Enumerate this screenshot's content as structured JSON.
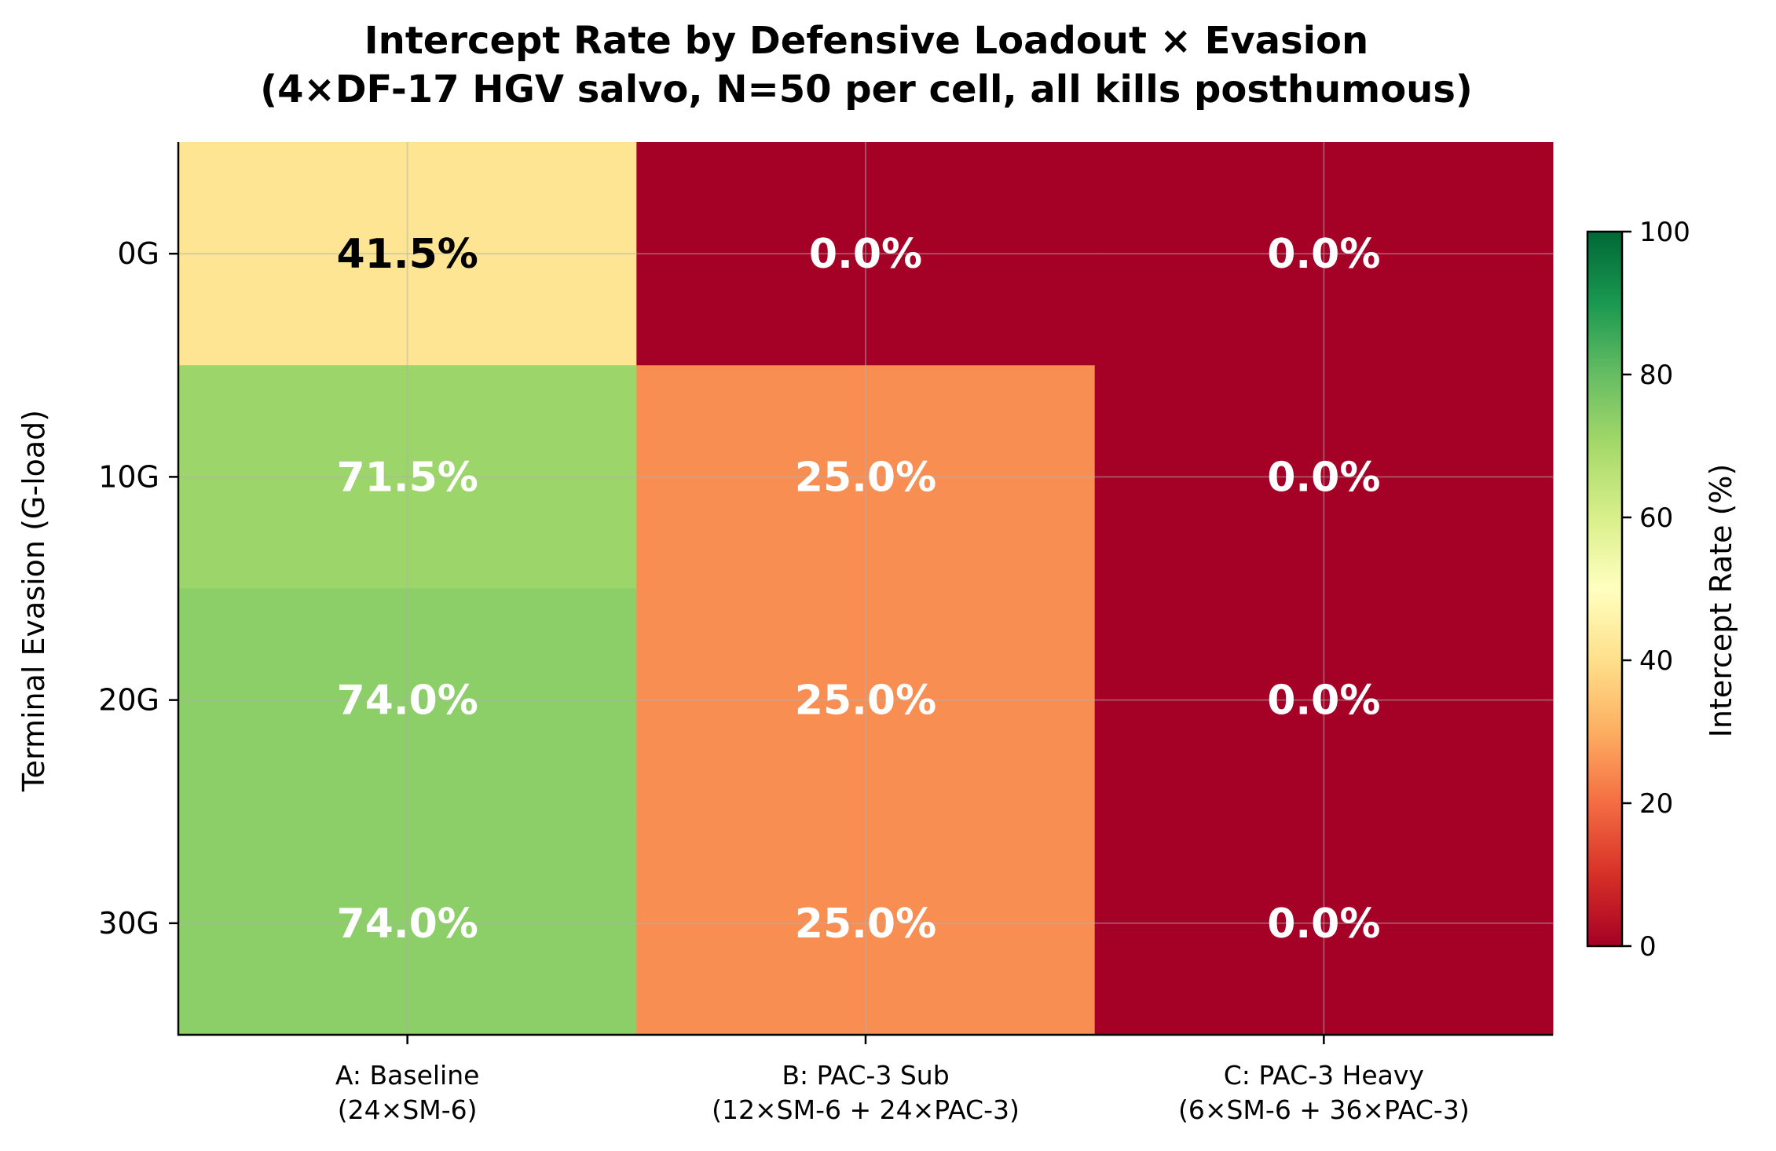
{
  "chart_data": {
    "type": "heatmap",
    "title": [
      "Intercept Rate by Defensive Loadout × Evasion",
      "(4×DF-17 HGV salvo, N=50 per cell, all kills posthumous)"
    ],
    "xlabel": "",
    "ylabel": "Terminal Evasion (G-load)",
    "x_categories": [
      [
        "A: Baseline",
        "(24×SM-6)"
      ],
      [
        "B: PAC-3 Sub",
        "(12×SM-6 + 24×PAC-3)"
      ],
      [
        "C: PAC-3 Heavy",
        "(6×SM-6 + 36×PAC-3)"
      ]
    ],
    "y_categories": [
      "0G",
      "10G",
      "20G",
      "30G"
    ],
    "values": [
      [
        41.5,
        0.0,
        0.0
      ],
      [
        71.5,
        25.0,
        0.0
      ],
      [
        74.0,
        25.0,
        0.0
      ],
      [
        74.0,
        25.0,
        0.0
      ]
    ],
    "cell_labels": [
      [
        "41.5%",
        "0.0%",
        "0.0%"
      ],
      [
        "71.5%",
        "25.0%",
        "0.0%"
      ],
      [
        "74.0%",
        "25.0%",
        "0.0%"
      ],
      [
        "74.0%",
        "25.0%",
        "0.0%"
      ]
    ],
    "colorbar": {
      "label": "Intercept Rate (%)",
      "range": [
        0,
        100
      ],
      "ticks": [
        0,
        20,
        40,
        60,
        80,
        100
      ],
      "colormap": "RdYlGn"
    },
    "grid": true
  }
}
